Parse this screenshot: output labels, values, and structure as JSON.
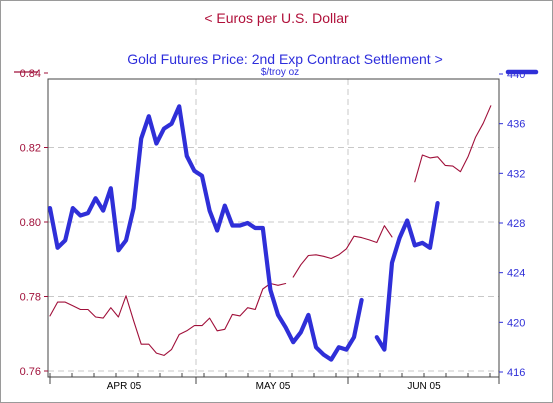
{
  "chart_data": {
    "type": "line",
    "title_left": "<  Euros per U.S. Dollar",
    "title_right": "Gold Futures Price: 2nd Exp Contract Settlement  >",
    "right_unit": "$/troy oz",
    "x_tick_labels": [
      "APR 05",
      "MAY 05",
      "JUN 05"
    ],
    "left_axis": {
      "ticks": [
        "0.84",
        "0.82",
        "0.80",
        "0.78",
        "0.76"
      ],
      "ylim": [
        0.76,
        0.84
      ]
    },
    "right_axis": {
      "ticks": [
        "440",
        "436",
        "432",
        "428",
        "424",
        "420",
        "416"
      ],
      "ylim": [
        416,
        440
      ]
    },
    "grid": true,
    "series": [
      {
        "name": "Euros per U.S. Dollar",
        "axis": "left",
        "color": "#a0103a",
        "segments": [
          [
            [
              0,
              0.7748
            ],
            [
              1,
              0.7785
            ],
            [
              2,
              0.7785
            ],
            [
              3,
              0.7775
            ],
            [
              4,
              0.7765
            ],
            [
              5,
              0.7765
            ],
            [
              6,
              0.7745
            ],
            [
              7,
              0.7742
            ],
            [
              8,
              0.777
            ],
            [
              9,
              0.7745
            ],
            [
              10,
              0.7802
            ],
            [
              11,
              0.7735
            ],
            [
              12,
              0.7672
            ],
            [
              13,
              0.7672
            ],
            [
              14,
              0.7648
            ],
            [
              15,
              0.7642
            ],
            [
              16,
              0.7658
            ],
            [
              17,
              0.7698
            ],
            [
              18,
              0.7708
            ],
            [
              19,
              0.7722
            ],
            [
              20,
              0.7722
            ],
            [
              21,
              0.7742
            ],
            [
              22,
              0.7708
            ],
            [
              23,
              0.7712
            ],
            [
              24,
              0.7752
            ],
            [
              25,
              0.7748
            ],
            [
              26,
              0.777
            ],
            [
              27,
              0.7765
            ],
            [
              28,
              0.782
            ],
            [
              29,
              0.7835
            ],
            [
              30,
              0.783
            ],
            [
              31,
              0.7835
            ]
          ],
          [
            [
              32,
              0.7852
            ],
            [
              33,
              0.7885
            ],
            [
              34,
              0.791
            ],
            [
              35,
              0.7912
            ],
            [
              36,
              0.7908
            ],
            [
              37,
              0.7902
            ],
            [
              38,
              0.7912
            ],
            [
              39,
              0.7928
            ],
            [
              40,
              0.7962
            ],
            [
              41,
              0.7958
            ],
            [
              42,
              0.7952
            ],
            [
              43,
              0.7945
            ],
            [
              44,
              0.799
            ],
            [
              45,
              0.796
            ]
          ],
          [
            [
              48,
              0.8108
            ],
            [
              49,
              0.818
            ],
            [
              50,
              0.8172
            ],
            [
              51,
              0.8175
            ],
            [
              52,
              0.8152
            ],
            [
              53,
              0.815
            ],
            [
              54,
              0.8135
            ],
            [
              55,
              0.8175
            ],
            [
              56,
              0.8228
            ],
            [
              57,
              0.8265
            ],
            [
              58,
              0.8312
            ]
          ]
        ]
      },
      {
        "name": "Gold Futures Price: 2nd Exp Contract Settlement",
        "axis": "right",
        "color": "#2f2fd8",
        "segments": [
          [
            [
              0,
              429.2
            ],
            [
              1,
              426.0
            ],
            [
              2,
              426.6
            ],
            [
              3,
              429.2
            ],
            [
              4,
              428.6
            ],
            [
              5,
              428.8
            ],
            [
              6,
              430.0
            ],
            [
              7,
              429.0
            ],
            [
              8,
              430.8
            ],
            [
              9,
              425.8
            ],
            [
              10,
              426.6
            ],
            [
              11,
              429.2
            ],
            [
              12,
              434.8
            ],
            [
              13,
              436.6
            ],
            [
              14,
              434.4
            ],
            [
              15,
              435.6
            ],
            [
              16,
              436.0
            ],
            [
              17,
              437.4
            ],
            [
              18,
              433.4
            ],
            [
              19,
              432.2
            ],
            [
              20,
              431.8
            ],
            [
              21,
              429.0
            ],
            [
              22,
              427.4
            ],
            [
              23,
              429.4
            ],
            [
              24,
              427.8
            ],
            [
              25,
              427.8
            ],
            [
              26,
              428.0
            ],
            [
              27,
              427.6
            ],
            [
              28,
              427.6
            ],
            [
              29,
              422.6
            ],
            [
              30,
              420.6
            ],
            [
              31,
              419.6
            ],
            [
              32,
              418.4
            ],
            [
              33,
              419.2
            ],
            [
              34,
              420.6
            ],
            [
              35,
              418.0
            ],
            [
              36,
              417.4
            ],
            [
              37,
              417.0
            ],
            [
              38,
              418.0
            ],
            [
              39,
              417.8
            ],
            [
              40,
              418.8
            ],
            [
              41,
              421.8
            ]
          ],
          [
            [
              43,
              418.8
            ],
            [
              44,
              417.8
            ],
            [
              45,
              424.8
            ],
            [
              46,
              426.8
            ],
            [
              47,
              428.2
            ],
            [
              48,
              426.2
            ],
            [
              49,
              426.4
            ],
            [
              50,
              426.0
            ],
            [
              51,
              429.6
            ]
          ]
        ]
      }
    ]
  },
  "legend": {
    "euro_color": "#a0103a",
    "gold_color": "#2f2fd8"
  }
}
